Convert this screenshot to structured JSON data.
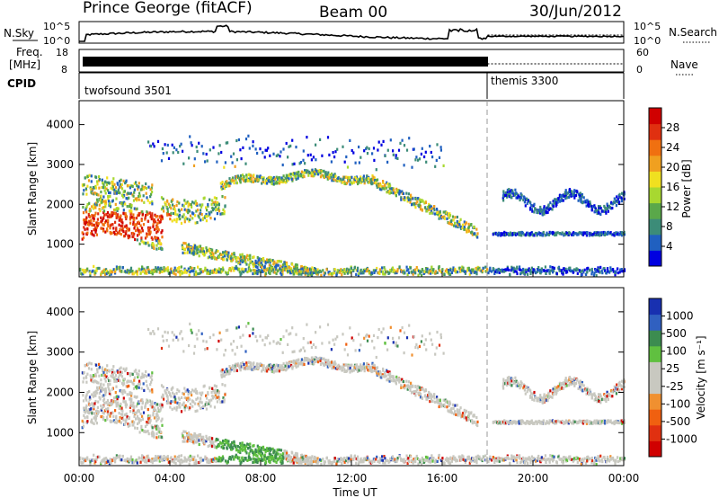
{
  "header": {
    "station": "Prince George (fitACF)",
    "beam": "Beam 00",
    "date": "30/Jun/2012"
  },
  "strips": {
    "nsky_label": "N.Sky",
    "nsky_ticks": [
      "10^5",
      "10^0"
    ],
    "nsearch_label": "N.Search",
    "nsearch_ticks": [
      "10^5",
      "10^0"
    ],
    "freq_label_1": "Freq.",
    "freq_label_2": "[MHz]",
    "freq_ticks": [
      "18",
      "8"
    ],
    "nave_label": "Nave",
    "nave_ticks": [
      "60",
      "0"
    ],
    "cpid_label": "CPID",
    "cpid_modes": [
      {
        "name": "twofsound 3501",
        "start_hour": 0
      },
      {
        "name": "themis 3300",
        "start_hour": 18
      }
    ]
  },
  "chart_data": [
    {
      "type": "heatmap",
      "title": "",
      "ylabel": "Slant Range [km]",
      "xlabel": "",
      "xlim": [
        0,
        24
      ],
      "ylim": [
        180,
        4600
      ],
      "y_ticks": [
        "1000",
        "2000",
        "3000",
        "4000"
      ],
      "colorbar": {
        "label": "Power [dB]",
        "ticks": [
          "4",
          "8",
          "12",
          "16",
          "20",
          "24",
          "28"
        ],
        "colors": [
          "#0000e0",
          "#2060c0",
          "#3c8c78",
          "#5aa84a",
          "#a8d830",
          "#f0e020",
          "#f0a020",
          "#f07010",
          "#e03010",
          "#d00000"
        ]
      }
    },
    {
      "type": "heatmap",
      "title": "",
      "ylabel": "Slant Range [km]",
      "xlabel": "Time UT",
      "xlim": [
        0,
        24
      ],
      "ylim": [
        180,
        4600
      ],
      "x_ticks": [
        "00:00",
        "04:00",
        "08:00",
        "12:00",
        "16:00",
        "20:00",
        "00:00"
      ],
      "y_ticks": [
        "1000",
        "2000",
        "3000",
        "4000"
      ],
      "colorbar": {
        "label": "Velocity [m s⁻¹]",
        "ticks": [
          "1000",
          "500",
          "100",
          "25",
          "-25",
          "-100",
          "-500",
          "-1000"
        ],
        "colors": [
          "#1830b0",
          "#3060c0",
          "#3c8c50",
          "#60c040",
          "#c8c8c0",
          "#c8c8c0",
          "#f09030",
          "#f06010",
          "#e03010",
          "#d00000"
        ]
      }
    }
  ]
}
